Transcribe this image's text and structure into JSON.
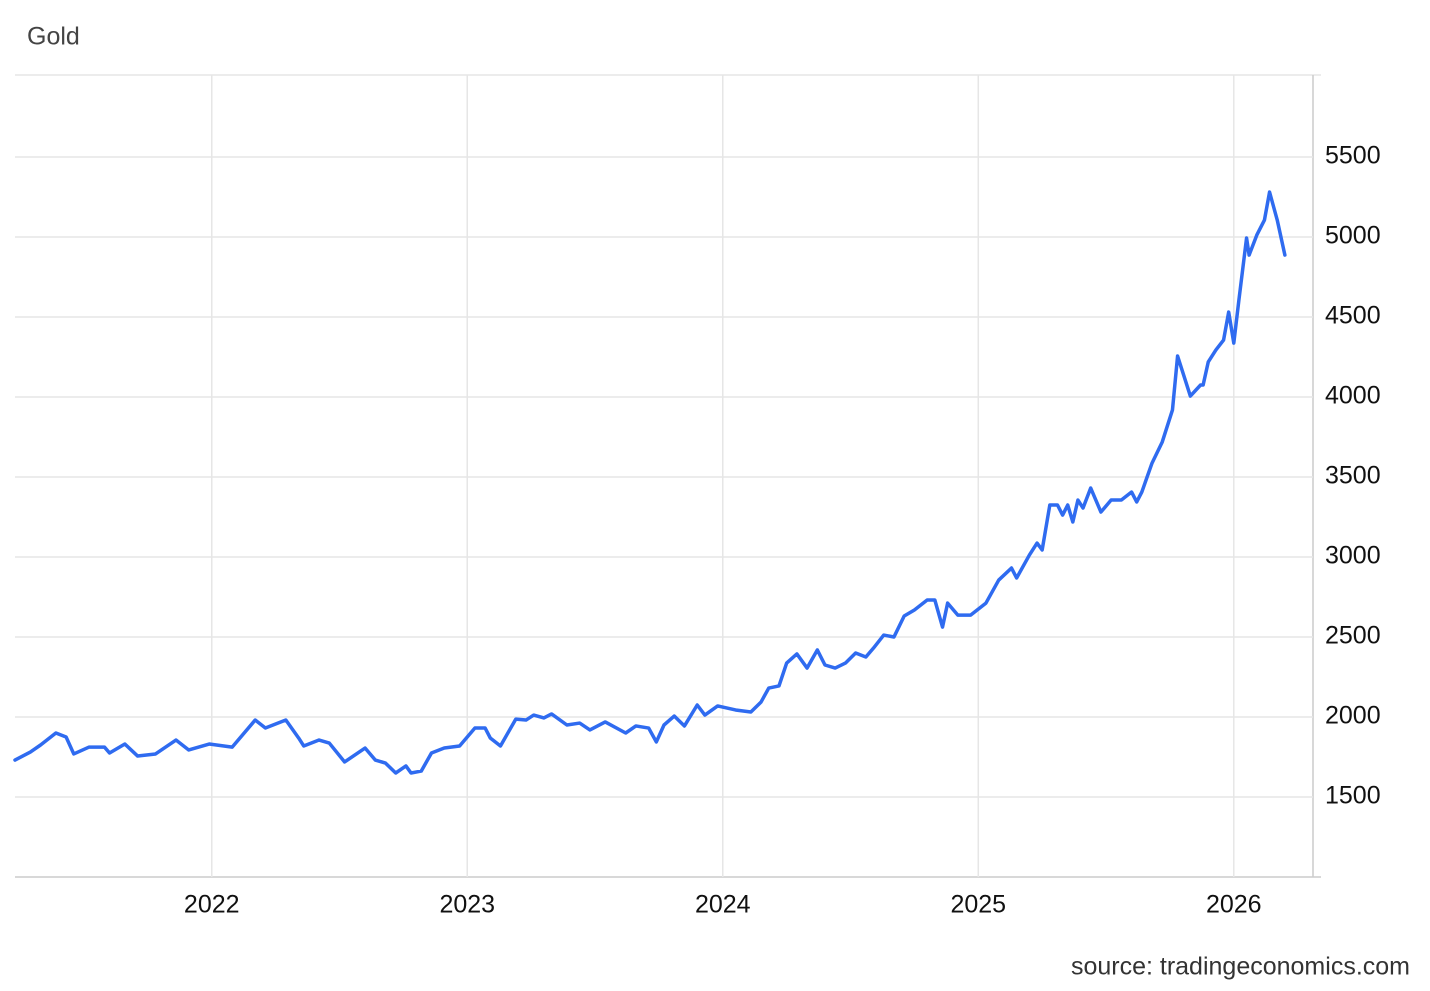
{
  "chart_data": {
    "type": "line",
    "title": "Gold",
    "source": "source: tradingeconomics.com",
    "xlim": [
      2021.23,
      2026.31
    ],
    "xticks": [
      2022,
      2023,
      2024,
      2025,
      2026
    ],
    "ylim": [
      1000,
      6000
    ],
    "yticks": [
      1500,
      2000,
      2500,
      3000,
      3500,
      4000,
      4500,
      5000,
      5500
    ],
    "grid": true,
    "x": [
      2021.23,
      2021.29,
      2021.33,
      2021.39,
      2021.43,
      2021.46,
      2021.52,
      2021.58,
      2021.6,
      2021.66,
      2021.71,
      2021.78,
      2021.86,
      2021.91,
      2021.99,
      2022.08,
      2022.17,
      2022.21,
      2022.29,
      2022.34,
      2022.36,
      2022.42,
      2022.46,
      2022.52,
      2022.6,
      2022.64,
      2022.68,
      2022.72,
      2022.76,
      2022.78,
      2022.82,
      2022.86,
      2022.91,
      2022.97,
      2023.03,
      2023.07,
      2023.09,
      2023.13,
      2023.19,
      2023.23,
      2023.26,
      2023.3,
      2023.33,
      2023.39,
      2023.44,
      2023.48,
      2023.54,
      2023.62,
      2023.66,
      2023.71,
      2023.74,
      2023.77,
      2023.81,
      2023.85,
      2023.9,
      2023.93,
      2023.98,
      2024.05,
      2024.11,
      2024.15,
      2024.18,
      2024.22,
      2024.25,
      2024.29,
      2024.33,
      2024.37,
      2024.4,
      2024.44,
      2024.48,
      2024.52,
      2024.56,
      2024.59,
      2024.63,
      2024.67,
      2024.71,
      2024.75,
      2024.8,
      2024.83,
      2024.86,
      2024.88,
      2024.92,
      2024.97,
      2025.03,
      2025.08,
      2025.13,
      2025.15,
      2025.2,
      2025.23,
      2025.25,
      2025.28,
      2025.31,
      2025.33,
      2025.35,
      2025.37,
      2025.39,
      2025.41,
      2025.44,
      2025.48,
      2025.52,
      2025.56,
      2025.6,
      2025.62,
      2025.64,
      2025.68,
      2025.72,
      2025.76,
      2025.78,
      2025.83,
      2025.87,
      2025.88,
      2025.9,
      2025.93,
      2025.96,
      2025.98,
      2026.0,
      2026.02,
      2026.05,
      2026.06,
      2026.09,
      2026.12,
      2026.14,
      2026.17,
      2026.2
    ],
    "series": [
      {
        "name": "Gold",
        "color": "#2f6bf0",
        "values": [
          1731,
          1781,
          1825,
          1900,
          1875,
          1769,
          1812,
          1812,
          1775,
          1831,
          1756,
          1769,
          1856,
          1794,
          1831,
          1812,
          1981,
          1931,
          1981,
          1869,
          1819,
          1856,
          1837,
          1719,
          1806,
          1731,
          1712,
          1650,
          1694,
          1650,
          1662,
          1775,
          1806,
          1819,
          1931,
          1931,
          1869,
          1819,
          1987,
          1981,
          2012,
          1994,
          2019,
          1950,
          1962,
          1919,
          1969,
          1900,
          1944,
          1931,
          1844,
          1950,
          2006,
          1944,
          2075,
          2012,
          2069,
          2044,
          2031,
          2094,
          2181,
          2194,
          2337,
          2394,
          2306,
          2419,
          2325,
          2306,
          2337,
          2400,
          2375,
          2431,
          2512,
          2500,
          2631,
          2669,
          2731,
          2731,
          2562,
          2712,
          2637,
          2637,
          2712,
          2856,
          2931,
          2869,
          3012,
          3087,
          3044,
          3325,
          3325,
          3262,
          3325,
          3219,
          3356,
          3306,
          3431,
          3281,
          3356,
          3356,
          3406,
          3344,
          3406,
          3587,
          3719,
          3919,
          4256,
          4006,
          4075,
          4075,
          4219,
          4294,
          4356,
          4531,
          4337,
          4606,
          4994,
          4887,
          5012,
          5106,
          5281,
          5106,
          4887
        ]
      }
    ]
  }
}
